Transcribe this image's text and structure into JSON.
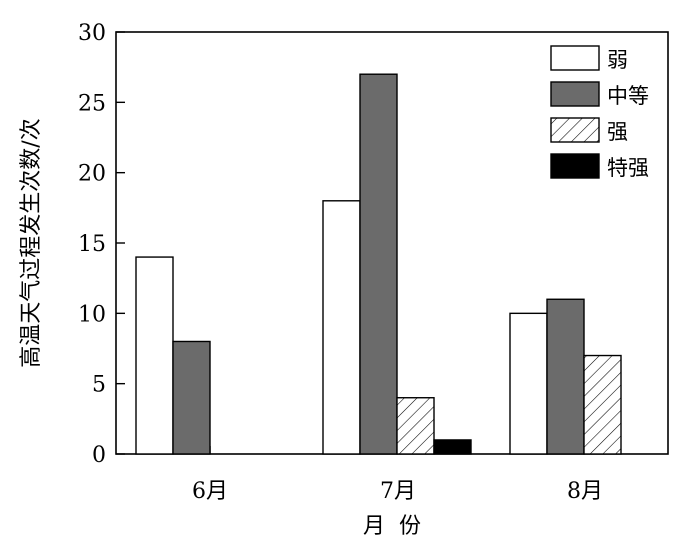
{
  "chart_data": {
    "type": "bar",
    "xlabel": "月  份",
    "ylabel": "高温天气过程发生次数/次",
    "ylim": [
      0,
      30
    ],
    "yticks": [
      0,
      5,
      10,
      15,
      20,
      25,
      30
    ],
    "categories": [
      "6月",
      "7月",
      "8月"
    ],
    "legend_position": "top-right",
    "grid": false,
    "series": [
      {
        "name": "弱",
        "values": [
          14,
          18,
          10
        ],
        "color": "#ffffff",
        "pattern": "none"
      },
      {
        "name": "中等",
        "values": [
          8,
          27,
          11
        ],
        "color": "#6b6b6b",
        "pattern": "none"
      },
      {
        "name": "强",
        "values": [
          0,
          4,
          7
        ],
        "color": "#ffffff",
        "pattern": "diagonal-hatch"
      },
      {
        "name": "特强",
        "values": [
          0,
          1,
          0
        ],
        "color": "#000000",
        "pattern": "none"
      }
    ]
  }
}
